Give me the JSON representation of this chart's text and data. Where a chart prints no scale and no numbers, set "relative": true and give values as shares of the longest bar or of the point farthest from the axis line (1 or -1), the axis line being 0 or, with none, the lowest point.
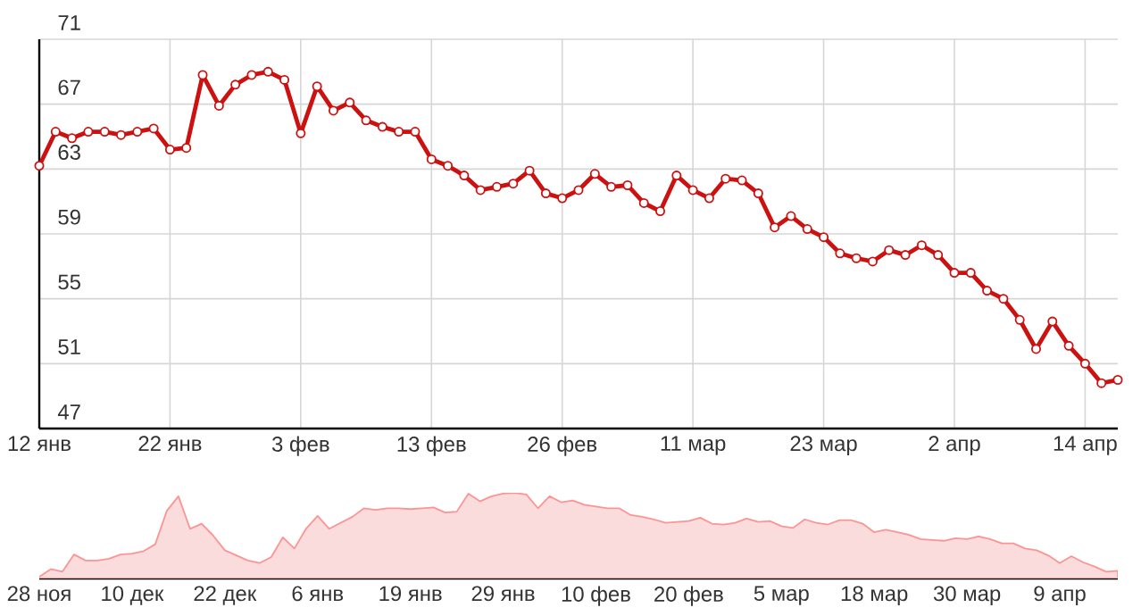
{
  "chart_data": [
    {
      "type": "line",
      "color": "#cc1111",
      "marker": "circle",
      "line_style": "solid",
      "grid": true,
      "categories": [
        "12 янв",
        null,
        null,
        null,
        null,
        null,
        null,
        null,
        "22 янв",
        null,
        null,
        null,
        null,
        null,
        null,
        null,
        "3 фев",
        null,
        null,
        null,
        null,
        null,
        null,
        null,
        "13 фев",
        null,
        null,
        null,
        null,
        null,
        null,
        null,
        "26 фев",
        null,
        null,
        null,
        null,
        null,
        null,
        null,
        "11 мар",
        null,
        null,
        null,
        null,
        null,
        null,
        null,
        "23 мар",
        null,
        null,
        null,
        null,
        null,
        null,
        null,
        "2 апр",
        null,
        null,
        null,
        null,
        null,
        null,
        null,
        "14 апр",
        null,
        null
      ],
      "values": [
        63.2,
        65.3,
        64.9,
        65.3,
        65.3,
        65.1,
        65.3,
        65.5,
        64.2,
        64.3,
        68.8,
        66.9,
        68.2,
        68.8,
        69.0,
        68.5,
        65.2,
        68.1,
        66.6,
        67.1,
        66.0,
        65.6,
        65.3,
        65.3,
        63.6,
        63.2,
        62.6,
        61.7,
        61.9,
        62.1,
        62.9,
        61.5,
        61.2,
        61.7,
        62.7,
        61.9,
        62.0,
        60.9,
        60.4,
        62.6,
        61.7,
        61.2,
        62.4,
        62.3,
        61.5,
        59.4,
        60.1,
        59.3,
        58.8,
        57.8,
        57.5,
        57.3,
        58.0,
        57.7,
        58.3,
        57.7,
        56.6,
        56.6,
        55.5,
        55.0,
        53.7,
        51.9,
        53.6,
        52.1,
        51.0,
        49.8,
        50.0
      ],
      "ylim": [
        47,
        71
      ],
      "yticks": [
        47,
        51,
        55,
        59,
        63,
        67,
        71
      ]
    },
    {
      "type": "area",
      "color": "#fbdcdc",
      "relative": true,
      "categories": [
        "28 ноя",
        null,
        null,
        null,
        null,
        null,
        null,
        null,
        "10 дек",
        null,
        null,
        null,
        null,
        null,
        null,
        null,
        "22 дек",
        null,
        null,
        null,
        null,
        null,
        null,
        null,
        "6 янв",
        null,
        null,
        null,
        null,
        null,
        null,
        null,
        "19 янв",
        null,
        null,
        null,
        null,
        null,
        null,
        null,
        "29 янв",
        null,
        null,
        null,
        null,
        null,
        null,
        null,
        "10 фев",
        null,
        null,
        null,
        null,
        null,
        null,
        null,
        "20 фев",
        null,
        null,
        null,
        null,
        null,
        null,
        null,
        "5 мар",
        null,
        null,
        null,
        null,
        null,
        null,
        null,
        "18 мар",
        null,
        null,
        null,
        null,
        null,
        null,
        null,
        "30 мар",
        null,
        null,
        null,
        null,
        null,
        null,
        null,
        "9 апр",
        null,
        null,
        null,
        null,
        null
      ],
      "values": [
        0.02,
        0.11,
        0.08,
        0.28,
        0.21,
        0.21,
        0.23,
        0.28,
        0.29,
        0.32,
        0.4,
        0.79,
        0.96,
        0.58,
        0.64,
        0.5,
        0.33,
        0.27,
        0.21,
        0.18,
        0.25,
        0.48,
        0.35,
        0.58,
        0.73,
        0.58,
        0.65,
        0.72,
        0.82,
        0.8,
        0.82,
        0.82,
        0.81,
        0.82,
        0.83,
        0.77,
        0.78,
        0.99,
        0.9,
        0.96,
        0.99,
        1.0,
        0.98,
        0.82,
        0.96,
        0.89,
        0.91,
        0.86,
        0.84,
        0.82,
        0.82,
        0.74,
        0.72,
        0.69,
        0.65,
        0.66,
        0.67,
        0.71,
        0.64,
        0.63,
        0.65,
        0.7,
        0.66,
        0.67,
        0.61,
        0.59,
        0.69,
        0.65,
        0.63,
        0.68,
        0.68,
        0.64,
        0.54,
        0.57,
        0.54,
        0.51,
        0.46,
        0.45,
        0.44,
        0.47,
        0.46,
        0.49,
        0.46,
        0.41,
        0.41,
        0.35,
        0.33,
        0.27,
        0.18,
        0.26,
        0.19,
        0.14,
        0.08,
        0.09
      ]
    }
  ]
}
